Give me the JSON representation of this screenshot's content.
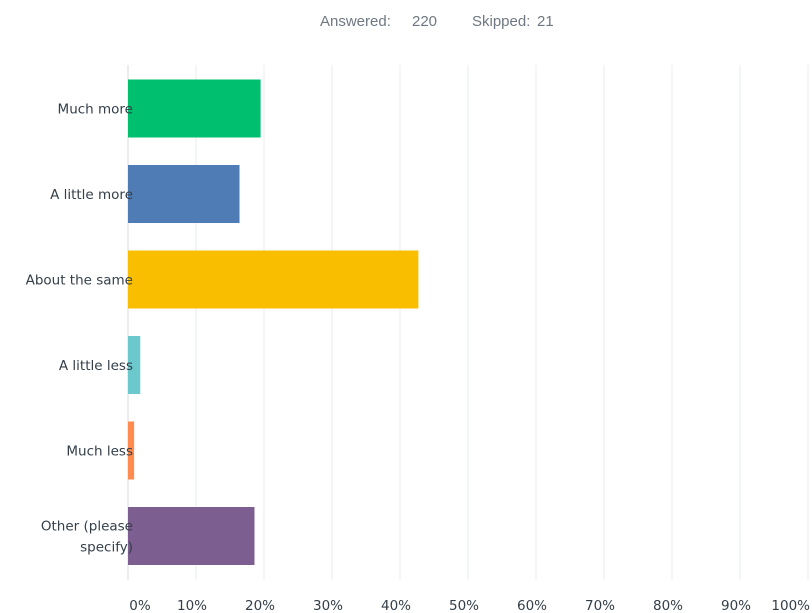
{
  "summary": {
    "answered_label": "Answered:",
    "answered_count": "220",
    "skipped_label": "Skipped:",
    "skipped_count": "21"
  },
  "chart_data": {
    "type": "bar",
    "orientation": "horizontal",
    "categories": [
      [
        "Much more"
      ],
      [
        "A little more"
      ],
      [
        "About the same"
      ],
      [
        "A little less"
      ],
      [
        "Much less"
      ],
      [
        "Other (please",
        "specify)"
      ]
    ],
    "values": [
      19.5,
      16.4,
      42.7,
      1.8,
      0.9,
      18.6
    ],
    "colors": [
      "#00bf6f",
      "#507cb6",
      "#f9be00",
      "#6bc8cd",
      "#ff8b4f",
      "#7d5e90"
    ],
    "xlim": [
      0,
      100
    ],
    "xticks": [
      "0%",
      "10%",
      "20%",
      "30%",
      "40%",
      "50%",
      "60%",
      "70%",
      "80%",
      "90%",
      "100%"
    ],
    "grid": true,
    "legend": "none"
  }
}
